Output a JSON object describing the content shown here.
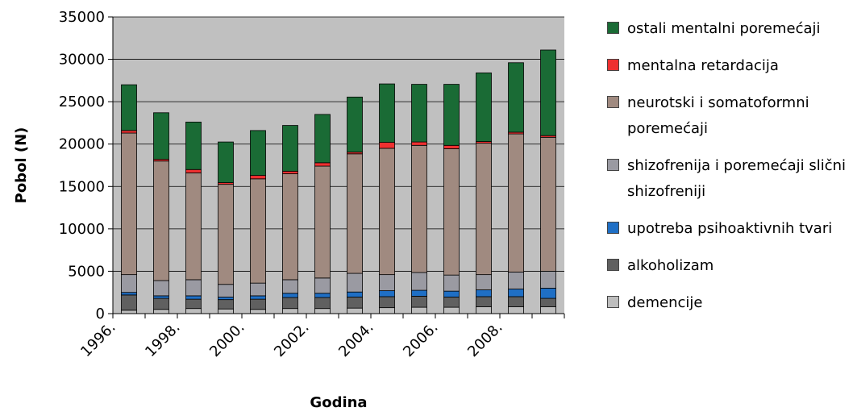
{
  "chart_data": {
    "type": "bar",
    "stacked": true,
    "xlabel": "Godina",
    "ylabel": "Pobol (N)",
    "ylim": [
      0,
      35000
    ],
    "yticks": [
      0,
      5000,
      10000,
      15000,
      20000,
      25000,
      30000,
      35000
    ],
    "x_tick_labels": [
      "1996.",
      "1998.",
      "2000.",
      "2002.",
      "2004.",
      "2006.",
      "2008."
    ],
    "categories": [
      "1996",
      "1997",
      "1998",
      "1999",
      "2000",
      "2001",
      "2002",
      "2003",
      "2004",
      "2005",
      "2006",
      "2007",
      "2008",
      "2009"
    ],
    "grid": true,
    "legend_position": "right",
    "series": [
      {
        "name": "demencije",
        "color": "#bdbdbd",
        "values": [
          400,
          500,
          600,
          550,
          500,
          600,
          600,
          650,
          700,
          750,
          750,
          800,
          800,
          800
        ]
      },
      {
        "name": "alkoholizam",
        "color": "#606060",
        "values": [
          1800,
          1300,
          1100,
          1100,
          1200,
          1300,
          1300,
          1300,
          1300,
          1300,
          1200,
          1200,
          1200,
          1000
        ]
      },
      {
        "name": "upotreba psihoaktivnih tvari",
        "color": "#1f6fc5",
        "values": [
          300,
          300,
          400,
          300,
          400,
          500,
          500,
          600,
          700,
          700,
          700,
          800,
          900,
          1200
        ]
      },
      {
        "name": "shizofrenija i poremećaji slični shizofreniji",
        "color": "#9a9aa2",
        "values": [
          2100,
          1800,
          1900,
          1500,
          1500,
          1600,
          1800,
          2200,
          1900,
          2100,
          1900,
          1800,
          2000,
          2000
        ]
      },
      {
        "name": "neurotski i somatoformni poremećaji",
        "color": "#a08a80",
        "values": [
          16700,
          14100,
          12600,
          11800,
          12300,
          12500,
          13200,
          14100,
          14900,
          15000,
          14900,
          15500,
          16300,
          15800
        ]
      },
      {
        "name": "mentalna retardacija",
        "color": "#ee3030",
        "values": [
          300,
          200,
          400,
          200,
          400,
          300,
          400,
          200,
          700,
          400,
          400,
          200,
          200,
          200
        ]
      },
      {
        "name": "ostali mentalni poremećaji",
        "color": "#1a6b35",
        "values": [
          5400,
          5500,
          5600,
          4800,
          5300,
          5400,
          5700,
          6500,
          6900,
          6800,
          7200,
          8100,
          8200,
          10100
        ]
      }
    ]
  },
  "legend": {
    "items": [
      {
        "label": "ostali mentalni poremećaji",
        "color": "#1a6b35"
      },
      {
        "label": "mentalna retardacija",
        "color": "#ee3030"
      },
      {
        "label": "neurotski i somatoformni poremećaji",
        "color": "#a08a80"
      },
      {
        "label": "shizofrenija i poremećaji slični shizofreniji",
        "color": "#9a9aa2"
      },
      {
        "label": "upotreba psihoaktivnih tvari",
        "color": "#1f6fc5"
      },
      {
        "label": "alkoholizam",
        "color": "#606060"
      },
      {
        "label": "demencije",
        "color": "#bdbdbd"
      }
    ]
  }
}
